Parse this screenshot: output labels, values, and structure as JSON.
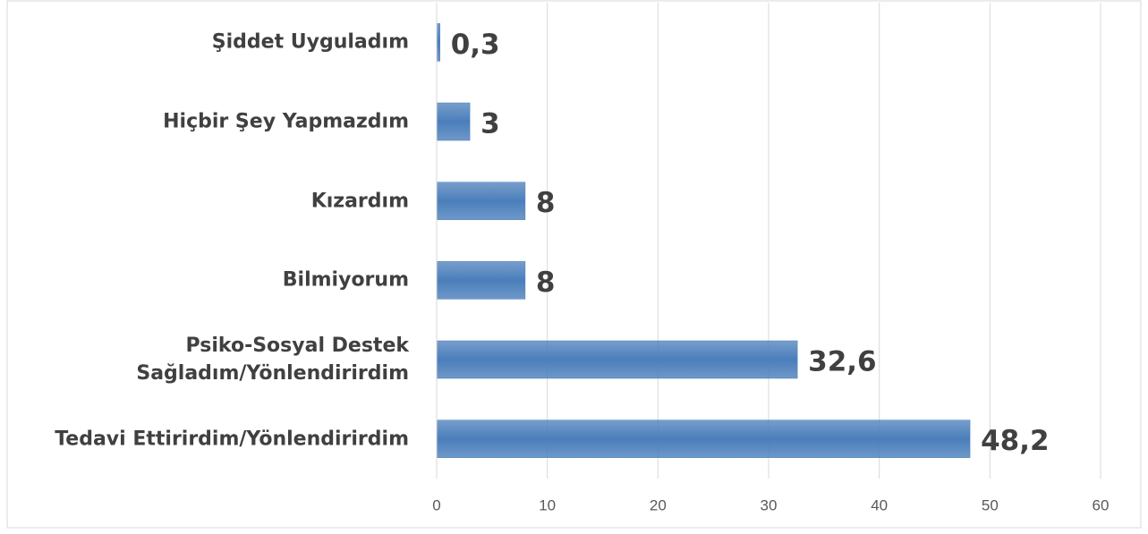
{
  "chart_data": {
    "type": "bar",
    "orientation": "horizontal",
    "categories": [
      "Şiddet Uyguladım",
      "Hiçbir Şey Yapmazdım",
      "Kızardım",
      "Bilmiyorum",
      "Psiko-Sosyal Destek\nSağladım/Yönlendirirdim",
      "Tedavi Ettirirdim/Yönlendirirdim"
    ],
    "values": [
      0.3,
      3,
      8,
      8,
      32.6,
      48.2
    ],
    "value_labels": [
      "0,3",
      "3",
      "8",
      "8",
      "32,6",
      "48,2"
    ],
    "color": "#4a7ebb",
    "xlim": [
      0,
      60
    ],
    "xticks": [
      0,
      10,
      20,
      30,
      40,
      50,
      60
    ],
    "grid": true
  }
}
